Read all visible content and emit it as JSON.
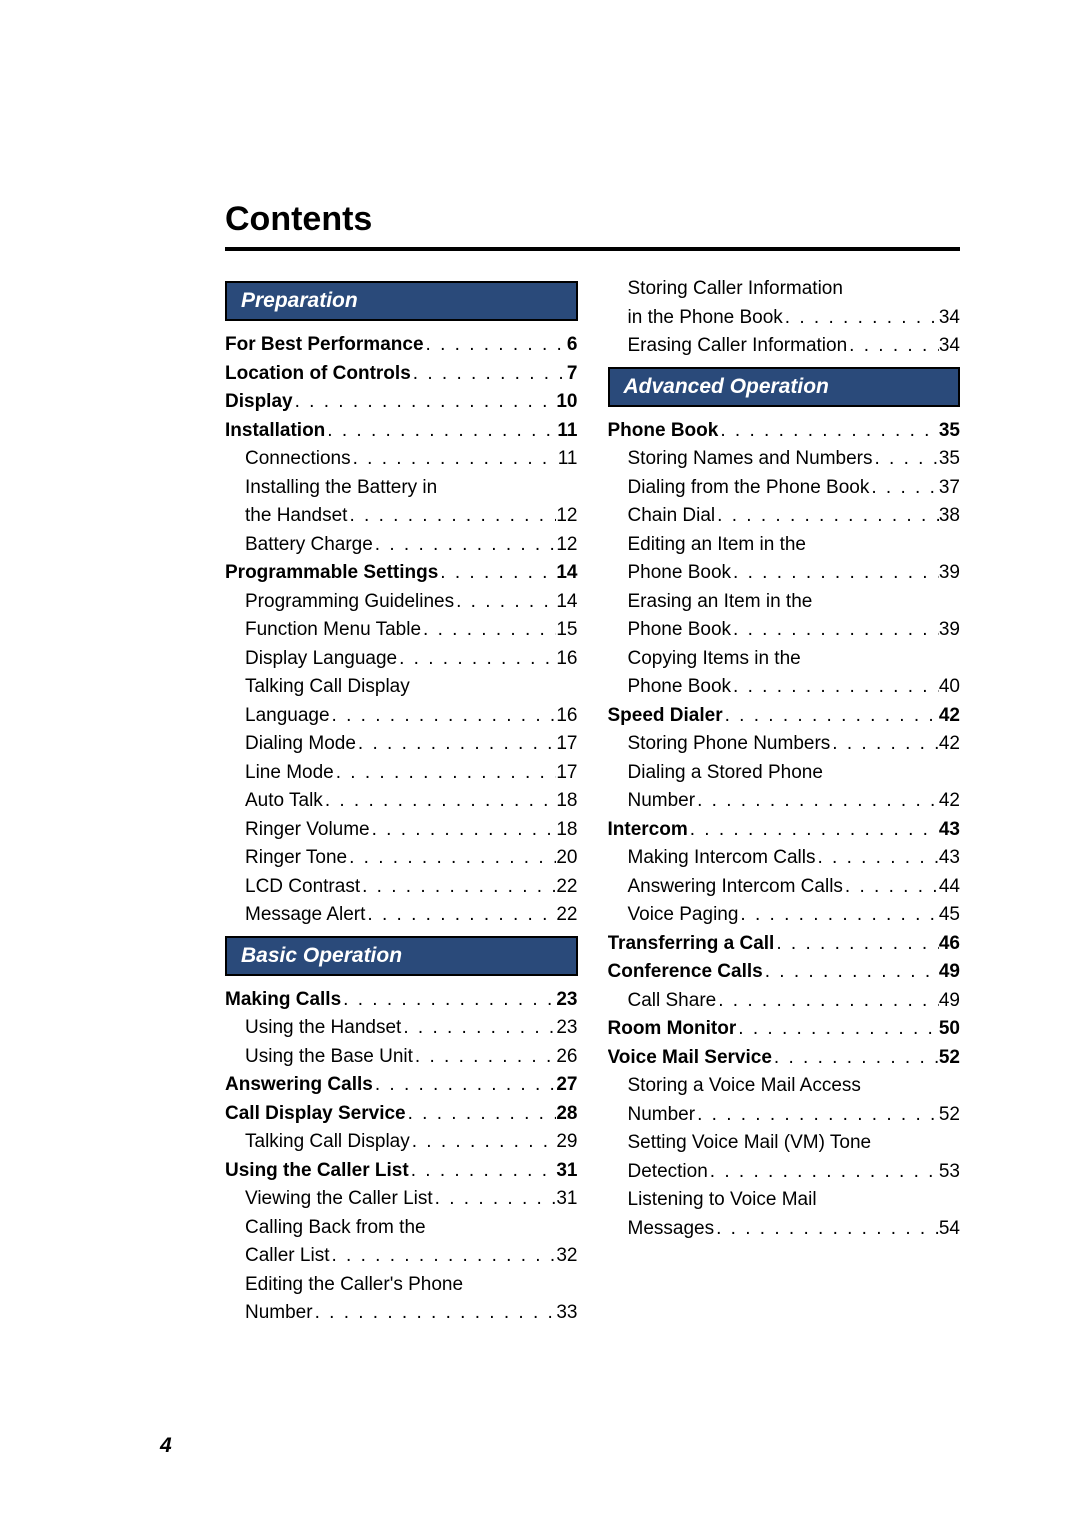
{
  "title": "Contents",
  "pageNumber": "4",
  "colors": {
    "headerBg": "#2a4a7a",
    "headerText": "#ffffff",
    "text": "#000000",
    "background": "#ffffff"
  },
  "typography": {
    "titleSize": 34,
    "bodySize": 19,
    "headerSize": 21
  },
  "leftColumn": [
    {
      "type": "header",
      "text": "Preparation"
    },
    {
      "type": "entry",
      "bold": true,
      "label": "For Best Performance",
      "page": "6"
    },
    {
      "type": "entry",
      "bold": true,
      "label": "Location of Controls",
      "page": "7"
    },
    {
      "type": "entry",
      "bold": true,
      "label": "Display",
      "page": "10"
    },
    {
      "type": "entry",
      "bold": true,
      "label": "Installation",
      "page": "11"
    },
    {
      "type": "entry",
      "sub": true,
      "label": "Connections",
      "page": "11"
    },
    {
      "type": "text",
      "sub": true,
      "label": "Installing the Battery in"
    },
    {
      "type": "entry",
      "sub": true,
      "label": "the Handset",
      "page": "12"
    },
    {
      "type": "entry",
      "sub": true,
      "label": "Battery Charge",
      "page": "12"
    },
    {
      "type": "entry",
      "bold": true,
      "label": "Programmable Settings",
      "page": "14"
    },
    {
      "type": "entry",
      "sub": true,
      "label": "Programming Guidelines",
      "page": "14"
    },
    {
      "type": "entry",
      "sub": true,
      "label": "Function Menu Table",
      "page": "15"
    },
    {
      "type": "entry",
      "sub": true,
      "label": "Display Language",
      "page": "16"
    },
    {
      "type": "text",
      "sub": true,
      "label": "Talking Call Display"
    },
    {
      "type": "entry",
      "sub": true,
      "label": "Language",
      "page": "16"
    },
    {
      "type": "entry",
      "sub": true,
      "label": "Dialing Mode",
      "page": "17"
    },
    {
      "type": "entry",
      "sub": true,
      "label": "Line Mode",
      "page": "17"
    },
    {
      "type": "entry",
      "sub": true,
      "label": "Auto Talk",
      "page": "18"
    },
    {
      "type": "entry",
      "sub": true,
      "label": "Ringer Volume",
      "page": "18"
    },
    {
      "type": "entry",
      "sub": true,
      "label": "Ringer Tone",
      "page": "20"
    },
    {
      "type": "entry",
      "sub": true,
      "label": "LCD Contrast",
      "page": "22"
    },
    {
      "type": "entry",
      "sub": true,
      "label": "Message Alert",
      "page": "22"
    },
    {
      "type": "header",
      "text": "Basic Operation"
    },
    {
      "type": "entry",
      "bold": true,
      "label": "Making Calls",
      "page": "23"
    },
    {
      "type": "entry",
      "sub": true,
      "label": "Using the Handset",
      "page": "23"
    },
    {
      "type": "entry",
      "sub": true,
      "label": "Using the Base Unit",
      "page": "26"
    },
    {
      "type": "entry",
      "bold": true,
      "label": "Answering Calls",
      "page": "27"
    },
    {
      "type": "entry",
      "bold": true,
      "label": "Call Display Service",
      "page": "28"
    },
    {
      "type": "entry",
      "sub": true,
      "label": "Talking Call Display",
      "page": "29"
    },
    {
      "type": "entry",
      "bold": true,
      "label": "Using the Caller List",
      "page": "31"
    },
    {
      "type": "entry",
      "sub": true,
      "label": "Viewing the Caller List",
      "page": "31"
    },
    {
      "type": "text",
      "sub": true,
      "label": "Calling Back from the"
    },
    {
      "type": "entry",
      "sub": true,
      "label": "Caller List",
      "page": "32"
    },
    {
      "type": "text",
      "sub": true,
      "label": "Editing the Caller's Phone"
    },
    {
      "type": "entry",
      "sub": true,
      "label": "Number",
      "page": "33"
    }
  ],
  "rightColumn": [
    {
      "type": "text",
      "sub": true,
      "label": "Storing Caller Information"
    },
    {
      "type": "entry",
      "sub": true,
      "label": "in the Phone Book",
      "page": "34"
    },
    {
      "type": "entry",
      "sub": true,
      "label": "Erasing Caller Information",
      "page": "34"
    },
    {
      "type": "header",
      "text": "Advanced Operation"
    },
    {
      "type": "entry",
      "bold": true,
      "label": "Phone Book",
      "page": "35"
    },
    {
      "type": "entry",
      "sub": true,
      "label": "Storing Names and Numbers",
      "page": "35"
    },
    {
      "type": "entry",
      "sub": true,
      "label": "Dialing from the Phone Book",
      "page": "37"
    },
    {
      "type": "entry",
      "sub": true,
      "label": "Chain Dial",
      "page": "38"
    },
    {
      "type": "text",
      "sub": true,
      "label": "Editing an Item in the"
    },
    {
      "type": "entry",
      "sub": true,
      "label": "Phone Book",
      "page": "39"
    },
    {
      "type": "text",
      "sub": true,
      "label": "Erasing an Item in the"
    },
    {
      "type": "entry",
      "sub": true,
      "label": "Phone Book",
      "page": "39"
    },
    {
      "type": "text",
      "sub": true,
      "label": "Copying Items in the"
    },
    {
      "type": "entry",
      "sub": true,
      "label": "Phone Book",
      "page": "40"
    },
    {
      "type": "entry",
      "bold": true,
      "label": "Speed Dialer",
      "page": "42"
    },
    {
      "type": "entry",
      "sub": true,
      "label": "Storing Phone Numbers",
      "page": "42"
    },
    {
      "type": "text",
      "sub": true,
      "label": "Dialing a Stored Phone"
    },
    {
      "type": "entry",
      "sub": true,
      "label": "Number",
      "page": "42"
    },
    {
      "type": "entry",
      "bold": true,
      "label": "Intercom",
      "page": "43"
    },
    {
      "type": "entry",
      "sub": true,
      "label": "Making Intercom Calls",
      "page": "43"
    },
    {
      "type": "entry",
      "sub": true,
      "label": "Answering Intercom Calls",
      "page": "44"
    },
    {
      "type": "entry",
      "sub": true,
      "label": "Voice Paging",
      "page": "45"
    },
    {
      "type": "entry",
      "bold": true,
      "label": "Transferring a Call",
      "page": "46"
    },
    {
      "type": "entry",
      "bold": true,
      "label": "Conference Calls",
      "page": "49"
    },
    {
      "type": "entry",
      "sub": true,
      "label": "Call Share",
      "page": "49"
    },
    {
      "type": "entry",
      "bold": true,
      "label": "Room Monitor",
      "page": "50"
    },
    {
      "type": "entry",
      "bold": true,
      "label": "Voice Mail Service",
      "page": "52"
    },
    {
      "type": "text",
      "sub": true,
      "label": "Storing a Voice Mail Access"
    },
    {
      "type": "entry",
      "sub": true,
      "label": "Number",
      "page": "52"
    },
    {
      "type": "text",
      "sub": true,
      "label": "Setting Voice Mail (VM) Tone"
    },
    {
      "type": "entry",
      "sub": true,
      "label": "Detection",
      "page": "53"
    },
    {
      "type": "text",
      "sub": true,
      "label": "Listening to Voice Mail"
    },
    {
      "type": "entry",
      "sub": true,
      "label": "Messages",
      "page": "54"
    }
  ]
}
